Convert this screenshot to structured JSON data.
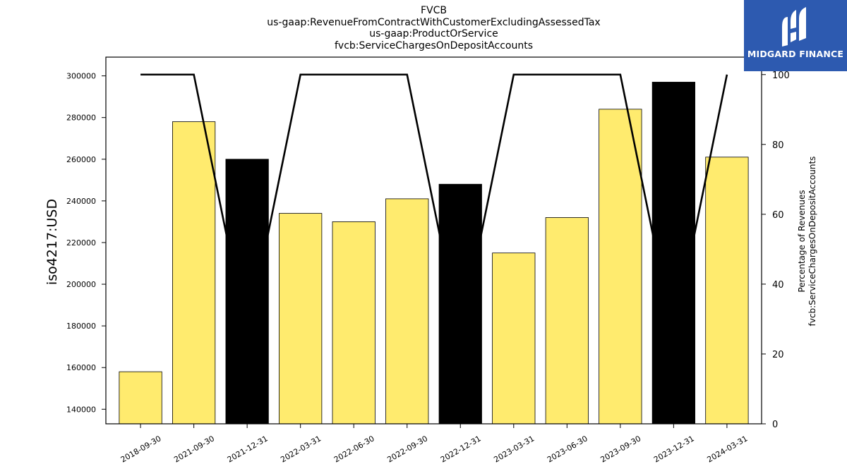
{
  "titles": [
    "FVCB",
    "us-gaap:RevenueFromContractWithCustomerExcludingAssessedTax",
    "us-gaap:ProductOrService",
    "fvcb:ServiceChargesOnDepositAccounts"
  ],
  "logo": {
    "text": "MIDGARD FINANCE",
    "icon": "midgard-logo-icon",
    "color": "#2d5ab0"
  },
  "chart_data": {
    "type": "bar",
    "categories": [
      "2018-09-30",
      "2021-09-30",
      "2021-12-31",
      "2022-03-31",
      "2022-06-30",
      "2022-09-30",
      "2022-12-31",
      "2023-03-31",
      "2023-06-30",
      "2023-09-30",
      "2023-12-31",
      "2024-03-31"
    ],
    "series": [
      {
        "values": [
          158000,
          278000,
          260000,
          234000,
          230000,
          241000,
          248000,
          215000,
          232000,
          284000,
          297000,
          261000
        ],
        "colors": [
          "#ffeb6e",
          "#ffeb6e",
          "#000000",
          "#ffeb6e",
          "#ffeb6e",
          "#ffeb6e",
          "#000000",
          "#ffeb6e",
          "#ffeb6e",
          "#ffeb6e",
          "#000000",
          "#ffeb6e"
        ]
      },
      {
        "type": "line",
        "axis": "right",
        "color": "#000000",
        "values": [
          100,
          100,
          25,
          100,
          100,
          100,
          25,
          100,
          100,
          100,
          25,
          100
        ]
      }
    ],
    "ylabel": "iso4217:USD",
    "y2label": [
      "Percentage of Revenues",
      "fvcb:ServiceChargesOnDepositAccounts"
    ],
    "ylim": [
      133000,
      309000
    ],
    "yticks": [
      140000,
      160000,
      180000,
      200000,
      220000,
      240000,
      260000,
      280000,
      300000
    ],
    "y2lim": [
      0,
      105
    ],
    "y2ticks": [
      0,
      20,
      40,
      60,
      80,
      100
    ],
    "grid": false,
    "legend": "none"
  }
}
